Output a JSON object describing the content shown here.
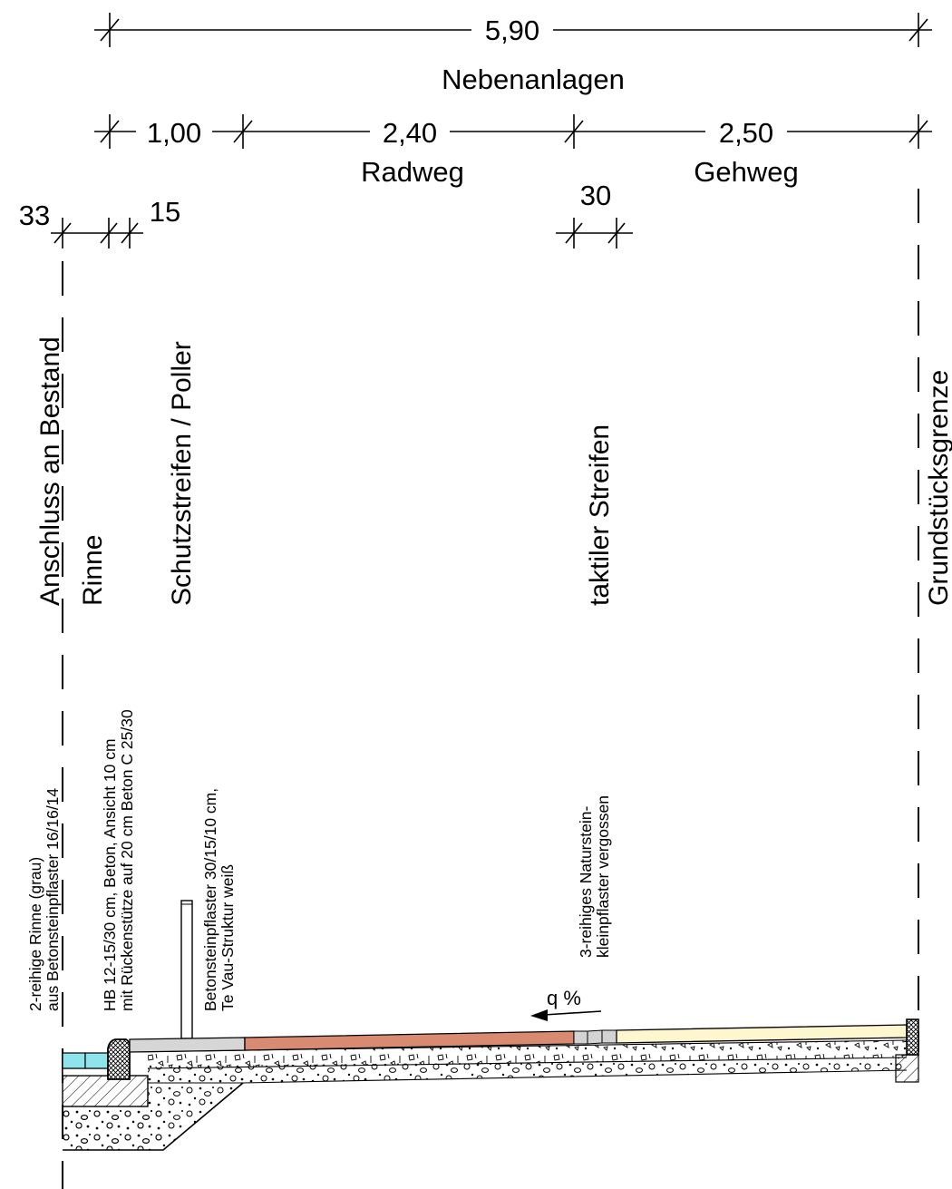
{
  "dimensions": {
    "total": "5,90",
    "section_label": "Nebenanlagen",
    "protection_strip": "1,00",
    "bike_path": "2,40",
    "bike_path_label": "Radweg",
    "sidewalk": "2,50",
    "sidewalk_label": "Gehweg",
    "gutter_width": "33",
    "curb_width": "15",
    "tactile_width": "30"
  },
  "zones": {
    "connection": "Anschluss an Bestand",
    "gutter": "Rinne",
    "protection": "Schutzstreifen / Poller",
    "tactile": "taktiler Streifen",
    "boundary": "Grundstücksgrenze"
  },
  "notes": {
    "gutter_line1": "2-reihige Rinne (grau)",
    "gutter_line2": "aus Betonsteinpflaster 16/16/14",
    "curb_line1": "HB 12-15/30 cm, Beton, Ansicht 10 cm",
    "curb_line2": "mit Rückenstütze auf 20 cm Beton C 25/30",
    "paving_line1": "Betonsteinpflaster 30/15/10 cm,",
    "paving_line2": "Te Vau-Struktur weiß",
    "tactile_line1": "3-reihiges Naturstein-",
    "tactile_line2": "kleinpflaster vergossen"
  },
  "slope": "q %",
  "colors": {
    "gutter_fill": "#8fe3ea",
    "protection_fill": "#d6d6d6",
    "bike_path_fill": "#d98b72",
    "tactile_fill": "#d3d3d3",
    "sidewalk_fill": "#fdf6cf"
  }
}
